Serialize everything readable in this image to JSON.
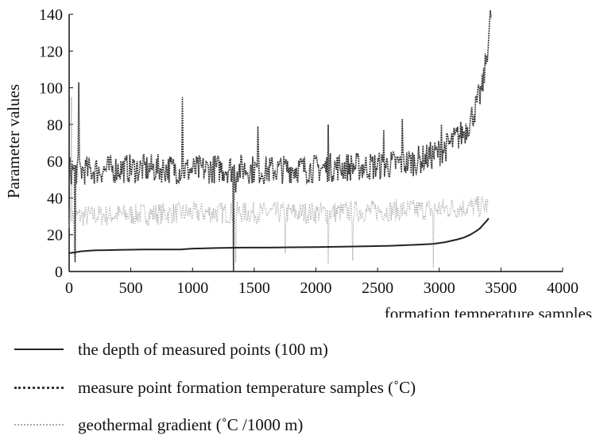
{
  "chart_data": {
    "type": "line",
    "title": "",
    "xlabel": "formation temperature samples",
    "ylabel": "Parameter values",
    "xlim": [
      0,
      4000
    ],
    "ylim": [
      0,
      140
    ],
    "xticks": [
      0,
      500,
      1000,
      1500,
      2000,
      2500,
      3000,
      3500,
      4000
    ],
    "yticks": [
      0,
      20,
      40,
      60,
      80,
      100,
      120,
      140
    ],
    "grid": false,
    "legend_position": "bottom",
    "series": [
      {
        "name": "the depth of measured points (100 m)",
        "style": "solid",
        "color": "#222222",
        "x": [
          0,
          50,
          100,
          200,
          400,
          600,
          800,
          900,
          1000,
          1200,
          1400,
          1600,
          1800,
          2000,
          2200,
          2400,
          2600,
          2800,
          2950,
          3050,
          3150,
          3200,
          3250,
          3300,
          3330,
          3350,
          3370,
          3390,
          3400
        ],
        "y": [
          10,
          10.5,
          11,
          11.5,
          11.8,
          12,
          12,
          12,
          12.5,
          12.8,
          13,
          13,
          13.2,
          13.3,
          13.5,
          13.7,
          14,
          14.5,
          15,
          16,
          17.5,
          18.5,
          20,
          22,
          23.5,
          25,
          26.5,
          28,
          29
        ]
      },
      {
        "name": "measure point formation temperature samples (˚C)",
        "style": "dense-dotted",
        "color": "#333333",
        "x": [
          0,
          200,
          400,
          600,
          800,
          1000,
          1200,
          1400,
          1600,
          1800,
          2000,
          2200,
          2400,
          2600,
          2800,
          2900,
          3000,
          3100,
          3200,
          3250,
          3300,
          3350,
          3380,
          3400,
          3420
        ],
        "y": [
          55,
          55,
          56,
          56,
          56,
          55,
          56,
          56,
          55,
          56,
          56,
          57,
          57,
          58,
          60,
          62,
          65,
          70,
          76,
          82,
          90,
          100,
          115,
          128,
          140
        ],
        "spread": 8,
        "spikes": [
          [
            45,
            5
          ],
          [
            75,
            103
          ],
          [
            920,
            95
          ],
          [
            1330,
            0
          ],
          [
            1350,
            43
          ],
          [
            1530,
            79
          ],
          [
            2100,
            80
          ],
          [
            2550,
            77
          ],
          [
            2700,
            83
          ],
          [
            3020,
            80
          ]
        ]
      },
      {
        "name": "geothermal gradient (˚C /1000 m)",
        "style": "light-dotted",
        "color": "#aaaaaa",
        "x": [
          0,
          500,
          1000,
          1500,
          2000,
          2500,
          3000,
          3200,
          3300,
          3380,
          3400
        ],
        "y": [
          30,
          31,
          32,
          32,
          32,
          33,
          34,
          35,
          35,
          36,
          35
        ],
        "spread": 6,
        "spikes": [
          [
            20,
            95
          ],
          [
            40,
            8
          ],
          [
            1350,
            5
          ],
          [
            1750,
            10
          ],
          [
            2100,
            4
          ],
          [
            2300,
            6
          ],
          [
            2950,
            2
          ]
        ]
      }
    ]
  }
}
